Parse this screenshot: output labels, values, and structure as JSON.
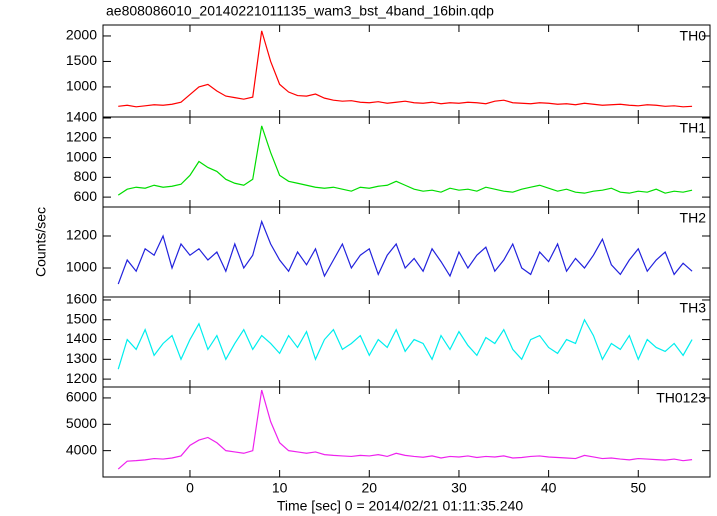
{
  "chart_data": [
    {
      "type": "line",
      "title": "ae808086010_20140221011135_wam3_bst_4band_16bin.qdp",
      "x": [
        -8,
        -7,
        -6,
        -5,
        -4,
        -3,
        -2,
        -1,
        0,
        1,
        2,
        3,
        4,
        5,
        6,
        7,
        8,
        9,
        10,
        11,
        12,
        13,
        14,
        15,
        16,
        17,
        18,
        19,
        20,
        21,
        22,
        23,
        24,
        25,
        26,
        27,
        28,
        29,
        30,
        31,
        32,
        33,
        34,
        35,
        36,
        37,
        38,
        39,
        40,
        41,
        42,
        43,
        44,
        45,
        46,
        47,
        48,
        49,
        50,
        51,
        52,
        53,
        54,
        55,
        56
      ],
      "series": [
        {
          "name": "TH0",
          "color": "#ff0000",
          "values": [
            620,
            640,
            610,
            630,
            650,
            640,
            660,
            700,
            850,
            1000,
            1050,
            920,
            820,
            790,
            760,
            800,
            2100,
            1500,
            1050,
            900,
            830,
            820,
            860,
            780,
            740,
            720,
            730,
            700,
            690,
            710,
            680,
            700,
            720,
            690,
            680,
            700,
            670,
            690,
            680,
            700,
            690,
            670,
            720,
            740,
            690,
            680,
            670,
            690,
            680,
            660,
            670,
            650,
            680,
            660,
            640,
            650,
            660,
            640,
            630,
            650,
            640,
            620,
            630,
            610,
            620
          ]
        }
      ],
      "xlim": [
        -9.7,
        58
      ],
      "xticks": [
        0,
        10,
        20,
        30,
        40,
        50
      ],
      "ylim": [
        410,
        2215
      ],
      "yticks": [
        1000,
        1500,
        2000
      ]
    },
    {
      "type": "line",
      "x": [
        -8,
        -7,
        -6,
        -5,
        -4,
        -3,
        -2,
        -1,
        0,
        1,
        2,
        3,
        4,
        5,
        6,
        7,
        8,
        9,
        10,
        11,
        12,
        13,
        14,
        15,
        16,
        17,
        18,
        19,
        20,
        21,
        22,
        23,
        24,
        25,
        26,
        27,
        28,
        29,
        30,
        31,
        32,
        33,
        34,
        35,
        36,
        37,
        38,
        39,
        40,
        41,
        42,
        43,
        44,
        45,
        46,
        47,
        48,
        49,
        50,
        51,
        52,
        53,
        54,
        55,
        56
      ],
      "series": [
        {
          "name": "TH1",
          "color": "#00dd00",
          "values": [
            620,
            680,
            700,
            690,
            720,
            700,
            710,
            730,
            820,
            960,
            900,
            860,
            780,
            740,
            720,
            780,
            1320,
            1050,
            820,
            760,
            740,
            720,
            700,
            690,
            700,
            680,
            660,
            700,
            690,
            710,
            720,
            760,
            720,
            680,
            660,
            670,
            650,
            690,
            670,
            680,
            660,
            700,
            680,
            660,
            650,
            680,
            700,
            720,
            690,
            660,
            680,
            650,
            640,
            660,
            670,
            690,
            650,
            640,
            660,
            650,
            680,
            640,
            660,
            650,
            670
          ]
        }
      ],
      "xlim": [
        -9.7,
        58
      ],
      "xticks": [
        0,
        10,
        20,
        30,
        40,
        50
      ],
      "ylim": [
        500,
        1410
      ],
      "yticks": [
        600,
        800,
        1000,
        1200,
        1400
      ]
    },
    {
      "type": "line",
      "ylabel": "Counts/sec",
      "x": [
        -8,
        -7,
        -6,
        -5,
        -4,
        -3,
        -2,
        -1,
        0,
        1,
        2,
        3,
        4,
        5,
        6,
        7,
        8,
        9,
        10,
        11,
        12,
        13,
        14,
        15,
        16,
        17,
        18,
        19,
        20,
        21,
        22,
        23,
        24,
        25,
        26,
        27,
        28,
        29,
        30,
        31,
        32,
        33,
        34,
        35,
        36,
        37,
        38,
        39,
        40,
        41,
        42,
        43,
        44,
        45,
        46,
        47,
        48,
        49,
        50,
        51,
        52,
        53,
        54,
        55,
        56
      ],
      "series": [
        {
          "name": "TH2",
          "color": "#2222dd",
          "values": [
            900,
            1050,
            980,
            1120,
            1080,
            1200,
            1000,
            1150,
            1080,
            1120,
            1050,
            1100,
            980,
            1150,
            1000,
            1080,
            1290,
            1150,
            1050,
            980,
            1100,
            1020,
            1120,
            950,
            1050,
            1150,
            1000,
            1080,
            1120,
            960,
            1080,
            1150,
            1000,
            1060,
            980,
            1120,
            1040,
            950,
            1100,
            1000,
            1080,
            1130,
            980,
            1050,
            1150,
            1000,
            960,
            1100,
            1040,
            1150,
            980,
            1060,
            1000,
            1080,
            1180,
            1020,
            960,
            1050,
            1120,
            980,
            1050,
            1100,
            960,
            1030,
            980
          ]
        }
      ],
      "xlim": [
        -9.7,
        58
      ],
      "xticks": [
        0,
        10,
        20,
        30,
        40,
        50
      ],
      "ylim": [
        819,
        1381
      ],
      "yticks": [
        1000,
        1200
      ]
    },
    {
      "type": "line",
      "x": [
        -8,
        -7,
        -6,
        -5,
        -4,
        -3,
        -2,
        -1,
        0,
        1,
        2,
        3,
        4,
        5,
        6,
        7,
        8,
        9,
        10,
        11,
        12,
        13,
        14,
        15,
        16,
        17,
        18,
        19,
        20,
        21,
        22,
        23,
        24,
        25,
        26,
        27,
        28,
        29,
        30,
        31,
        32,
        33,
        34,
        35,
        36,
        37,
        38,
        39,
        40,
        41,
        42,
        43,
        44,
        45,
        46,
        47,
        48,
        49,
        50,
        51,
        52,
        53,
        54,
        55,
        56
      ],
      "series": [
        {
          "name": "TH3",
          "color": "#00eeee",
          "values": [
            1250,
            1400,
            1350,
            1450,
            1320,
            1380,
            1420,
            1300,
            1400,
            1480,
            1350,
            1420,
            1300,
            1380,
            1450,
            1350,
            1420,
            1380,
            1330,
            1420,
            1360,
            1440,
            1300,
            1400,
            1450,
            1350,
            1380,
            1420,
            1320,
            1400,
            1360,
            1450,
            1340,
            1400,
            1380,
            1300,
            1420,
            1350,
            1440,
            1370,
            1320,
            1410,
            1380,
            1450,
            1350,
            1300,
            1400,
            1420,
            1360,
            1330,
            1400,
            1380,
            1500,
            1420,
            1300,
            1380,
            1350,
            1420,
            1300,
            1400,
            1360,
            1340,
            1380,
            1320,
            1400
          ]
        }
      ],
      "xlim": [
        -9.7,
        58
      ],
      "xticks": [
        0,
        10,
        20,
        30,
        40,
        50
      ],
      "ylim": [
        1160,
        1615
      ],
      "yticks": [
        1200,
        1300,
        1400,
        1500,
        1600
      ]
    },
    {
      "type": "line",
      "xlabel": "Time [sec] 0 = 2014/02/21 01:11:35.240",
      "x": [
        -8,
        -7,
        -6,
        -5,
        -4,
        -3,
        -2,
        -1,
        0,
        1,
        2,
        3,
        4,
        5,
        6,
        7,
        8,
        9,
        10,
        11,
        12,
        13,
        14,
        15,
        16,
        17,
        18,
        19,
        20,
        21,
        22,
        23,
        24,
        25,
        26,
        27,
        28,
        29,
        30,
        31,
        32,
        33,
        34,
        35,
        36,
        37,
        38,
        39,
        40,
        41,
        42,
        43,
        44,
        45,
        46,
        47,
        48,
        49,
        50,
        51,
        52,
        53,
        54,
        55,
        56
      ],
      "series": [
        {
          "name": "TH0123",
          "color": "#ee22ee",
          "values": [
            3300,
            3600,
            3620,
            3650,
            3700,
            3680,
            3720,
            3800,
            4200,
            4400,
            4500,
            4300,
            4000,
            3950,
            3900,
            4000,
            6300,
            5100,
            4300,
            4000,
            3950,
            3900,
            3950,
            3850,
            3820,
            3800,
            3780,
            3820,
            3800,
            3850,
            3780,
            3900,
            3820,
            3780,
            3750,
            3800,
            3720,
            3780,
            3760,
            3800,
            3740,
            3780,
            3760,
            3800,
            3720,
            3740,
            3780,
            3800,
            3760,
            3740,
            3720,
            3700,
            3820,
            3760,
            3700,
            3720,
            3680,
            3650,
            3700,
            3680,
            3660,
            3640,
            3680,
            3620,
            3660
          ]
        }
      ],
      "xlim": [
        -9.7,
        58
      ],
      "xticks": [
        0,
        10,
        20,
        30,
        40,
        50
      ],
      "ylim": [
        3000,
        6415
      ],
      "yticks": [
        4000,
        5000,
        6000
      ]
    }
  ]
}
